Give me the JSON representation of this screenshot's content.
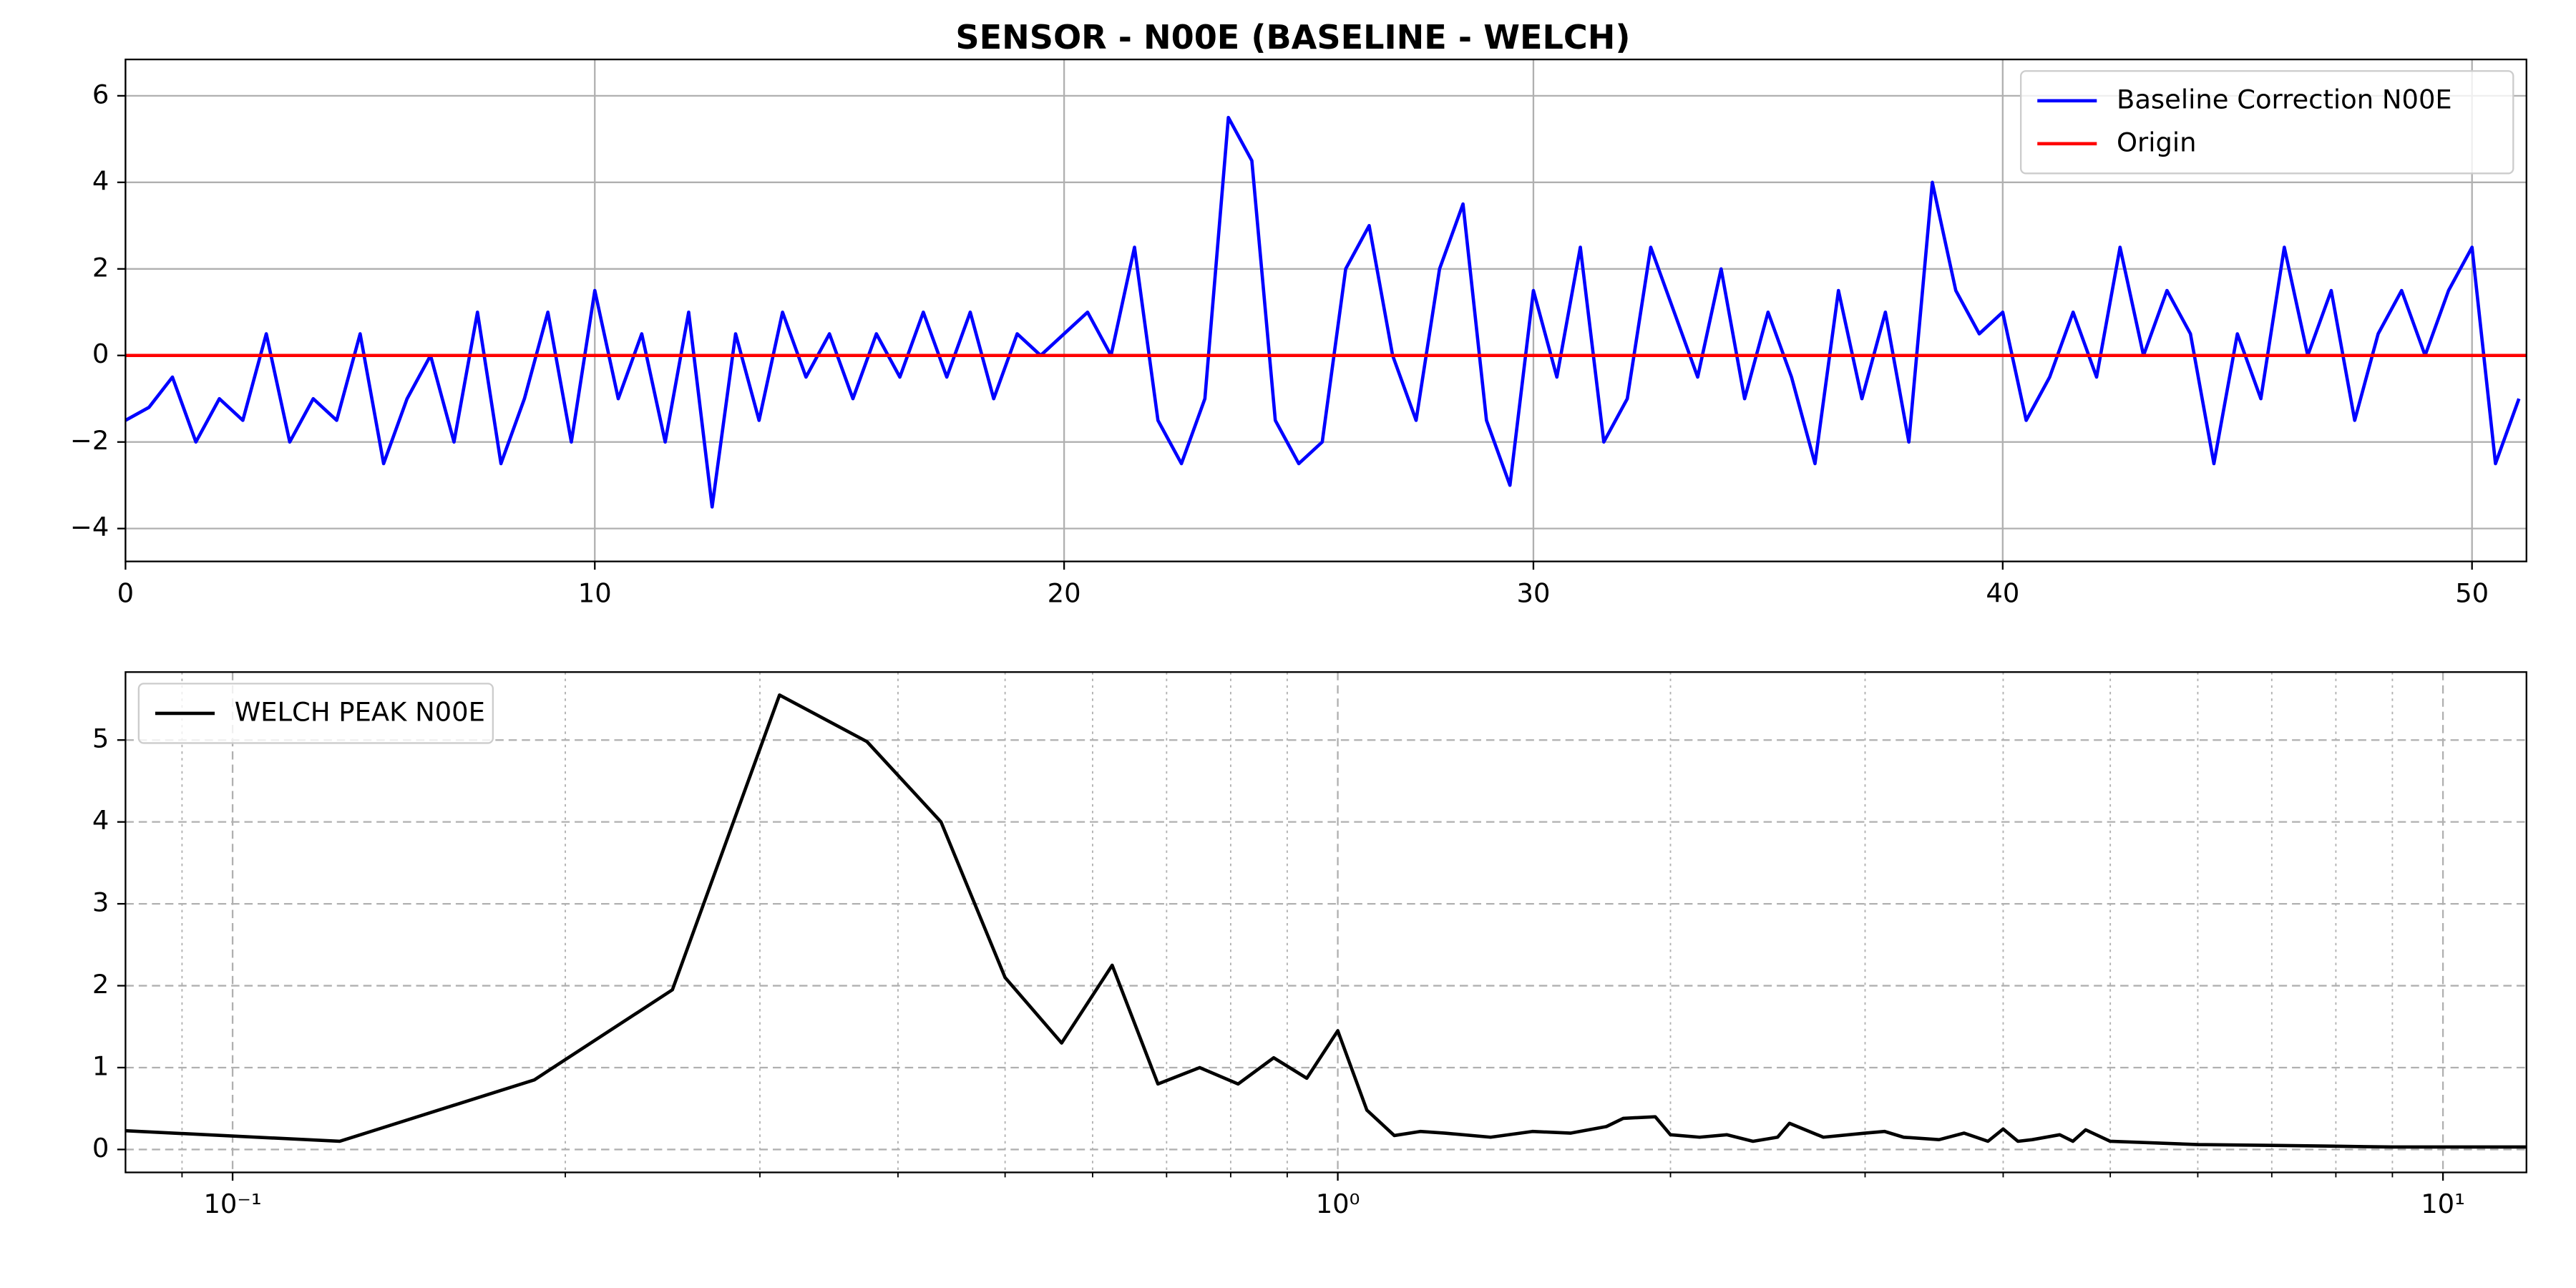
{
  "chart_data": [
    {
      "type": "line",
      "title": "SENSOR - N00E (BASELINE - WELCH)",
      "xlim": [
        0,
        51.16
      ],
      "ylim": [
        -4.76,
        6.84
      ],
      "xticks": [
        0,
        10,
        20,
        30,
        40,
        50
      ],
      "yticks": [
        {
          "value": -4,
          "label": "−4"
        },
        {
          "value": -2,
          "label": "−2"
        },
        0,
        2,
        4,
        6
      ],
      "grid": "solid",
      "legend": "upper right",
      "xscale": "linear",
      "series": [
        {
          "name": "Baseline Correction N00E",
          "color": "#0000ff",
          "x": [
            0,
            0.5,
            1,
            1.5,
            2,
            2.5,
            3,
            3.5,
            4,
            4.5,
            5,
            5.5,
            6,
            6.5,
            7,
            7.5,
            8,
            8.5,
            9,
            9.5,
            10,
            10.5,
            11,
            11.5,
            12,
            12.5,
            13,
            13.5,
            14,
            14.5,
            15,
            15.5,
            16,
            16.5,
            17,
            17.5,
            18,
            18.5,
            19,
            19.5,
            20,
            20.5,
            21,
            21.5,
            22,
            22.5,
            23,
            23.5,
            24,
            24.5,
            25,
            25.5,
            26,
            26.5,
            27,
            27.5,
            28,
            28.5,
            29,
            29.5,
            30,
            30.5,
            31,
            31.5,
            32,
            32.5,
            33,
            33.5,
            34,
            34.5,
            35,
            35.5,
            36,
            36.5,
            37,
            37.5,
            38,
            38.5,
            39,
            39.5,
            40,
            40.5,
            41,
            41.5,
            42,
            42.5,
            43,
            43.5,
            44,
            44.5,
            45,
            45.5,
            46,
            46.5,
            47,
            47.5,
            48,
            48.5,
            49,
            49.5,
            50,
            50.5,
            51
          ],
          "values": [
            -1.5,
            -1.2,
            -0.5,
            -2,
            -1,
            -1.5,
            0.5,
            -2,
            -1,
            -1.5,
            0.5,
            -2.5,
            -1,
            0,
            -2,
            1,
            -2.5,
            -1,
            1,
            -2,
            1.5,
            -1,
            0.5,
            -2,
            1,
            -3.5,
            0.5,
            -1.5,
            1,
            -0.5,
            0.5,
            -1,
            0.5,
            -0.5,
            1,
            -0.5,
            1,
            -1,
            0.5,
            0,
            0.5,
            1,
            0,
            2.5,
            -1.5,
            -2.5,
            -1,
            5.5,
            4.5,
            -1.5,
            -2.5,
            -2,
            2,
            3,
            0,
            -1.5,
            2,
            3.5,
            -1.5,
            -3,
            1.5,
            -0.5,
            2.5,
            -2,
            -1,
            2.5,
            1,
            -0.5,
            2,
            -1,
            1,
            -0.5,
            -2.5,
            1.5,
            -1,
            1,
            -2,
            4,
            1.5,
            0.5,
            1,
            -1.5,
            -0.5,
            1,
            -0.5,
            2.5,
            0,
            1.5,
            0.5,
            -2.5,
            0.5,
            -1,
            2.5,
            0,
            1.5,
            -1.5,
            0.5,
            1.5,
            0,
            1.5,
            2.5,
            -2.5,
            -1
          ]
        },
        {
          "name": "Origin",
          "color": "#ff0000",
          "x": [
            0,
            51.16
          ],
          "values": [
            0,
            0
          ]
        }
      ]
    },
    {
      "type": "line",
      "xscale": "log",
      "xlim": [
        0.08,
        11.9
      ],
      "ylim": [
        -0.28,
        5.83
      ],
      "xticks": [
        {
          "value": 0.1,
          "label": "10⁻¹"
        },
        {
          "value": 1,
          "label": "10⁰"
        },
        {
          "value": 10,
          "label": "10¹"
        }
      ],
      "xminorticks": [
        0.09,
        0.2,
        0.3,
        0.4,
        0.5,
        0.6,
        0.7,
        0.8,
        0.9,
        2,
        3,
        4,
        5,
        6,
        7,
        8,
        9
      ],
      "yticks": [
        0,
        1,
        2,
        3,
        4,
        5
      ],
      "grid": "dashed",
      "legend": "upper left",
      "series": [
        {
          "name": "WELCH PEAK N00E",
          "color": "#000000",
          "x": [
            0.0625,
            0.125,
            0.1875,
            0.25,
            0.3125,
            0.375,
            0.4375,
            0.5,
            0.5625,
            0.625,
            0.6875,
            0.75,
            0.8125,
            0.875,
            0.9375,
            1.0,
            1.0625,
            1.125,
            1.1875,
            1.25,
            1.375,
            1.5,
            1.625,
            1.75,
            1.8125,
            1.9375,
            2.0,
            2.125,
            2.25,
            2.375,
            2.5,
            2.5625,
            2.75,
            3.0,
            3.125,
            3.25,
            3.5,
            3.6875,
            3.875,
            4.0,
            4.125,
            4.25,
            4.5,
            4.625,
            4.75,
            5.0,
            5.5,
            6.0,
            7.0,
            8.0,
            9.0,
            10.0,
            11.0,
            11.9
          ],
          "values": [
            0.3,
            0.1,
            0.85,
            1.95,
            5.55,
            4.98,
            4.0,
            2.1,
            1.3,
            2.25,
            0.8,
            1.0,
            0.8,
            1.12,
            0.87,
            1.45,
            0.48,
            0.17,
            0.22,
            0.2,
            0.15,
            0.22,
            0.2,
            0.28,
            0.38,
            0.4,
            0.18,
            0.15,
            0.18,
            0.1,
            0.15,
            0.32,
            0.15,
            0.2,
            0.22,
            0.15,
            0.12,
            0.2,
            0.1,
            0.25,
            0.1,
            0.12,
            0.18,
            0.1,
            0.24,
            0.1,
            0.08,
            0.06,
            0.05,
            0.04,
            0.03,
            0.03,
            0.03,
            0.03
          ]
        }
      ]
    }
  ]
}
